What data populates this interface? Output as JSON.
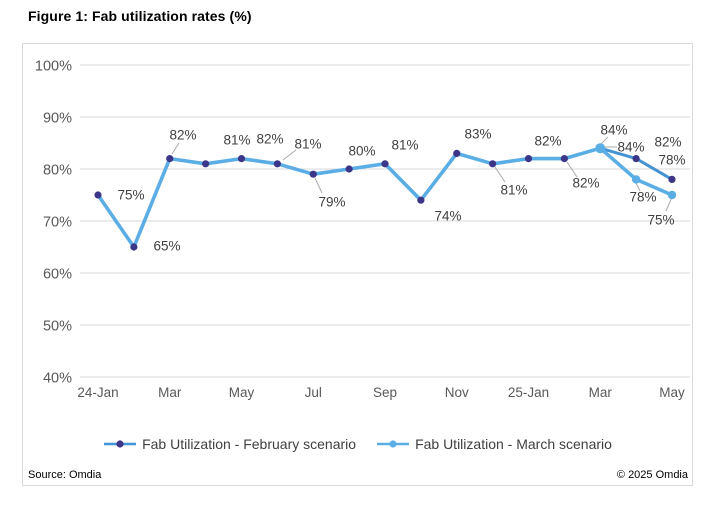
{
  "title": "Figure 1: Fab utilization rates (%)",
  "footer": {
    "source": "Source: Omdia",
    "copyright": "© 2025 Omdia"
  },
  "colors": {
    "february_line": "#4493D2",
    "february_marker": "#3C3688",
    "march_line": "#5BAEE5",
    "march_marker": "#5BAEE5",
    "gridline": "#D9D9D9",
    "frame_border": "#D9D9D9",
    "axis_text": "#595959",
    "data_label_text": "#404040",
    "leader_line": "#A9A9A9"
  },
  "chart_data": {
    "type": "line",
    "title": "Figure 1: Fab utilization rates (%)",
    "unit": "%",
    "grid": true,
    "legend_position": "bottom",
    "ylim": [
      40,
      100
    ],
    "y_tick_step": 10,
    "y_tick_labels": [
      "100%",
      "90%",
      "80%",
      "70%",
      "60%",
      "50%",
      "40%"
    ],
    "x_tick_labels": [
      "24-Jan",
      "Mar",
      "May",
      "Jul",
      "Sep",
      "Nov",
      "25-Jan",
      "Mar",
      "May"
    ],
    "x_categories": [
      "Jan-24",
      "Feb-24",
      "Mar-24",
      "Apr-24",
      "May-24",
      "Jun-24",
      "Jul-24",
      "Aug-24",
      "Sep-24",
      "Oct-24",
      "Nov-24",
      "Dec-24",
      "Jan-25",
      "Feb-25",
      "Mar-25",
      "Apr-25",
      "May-25"
    ],
    "series": [
      {
        "name": "Fab Utilization - February scenario",
        "values": [
          75,
          65,
          82,
          81,
          82,
          81,
          79,
          80,
          81,
          74,
          83,
          81,
          82,
          82,
          84,
          82,
          78
        ]
      },
      {
        "name": "Fab Utilization - March scenario",
        "values": [
          75,
          65,
          82,
          81,
          82,
          81,
          79,
          80,
          81,
          74,
          83,
          81,
          82,
          82,
          84,
          78,
          75
        ]
      }
    ]
  }
}
